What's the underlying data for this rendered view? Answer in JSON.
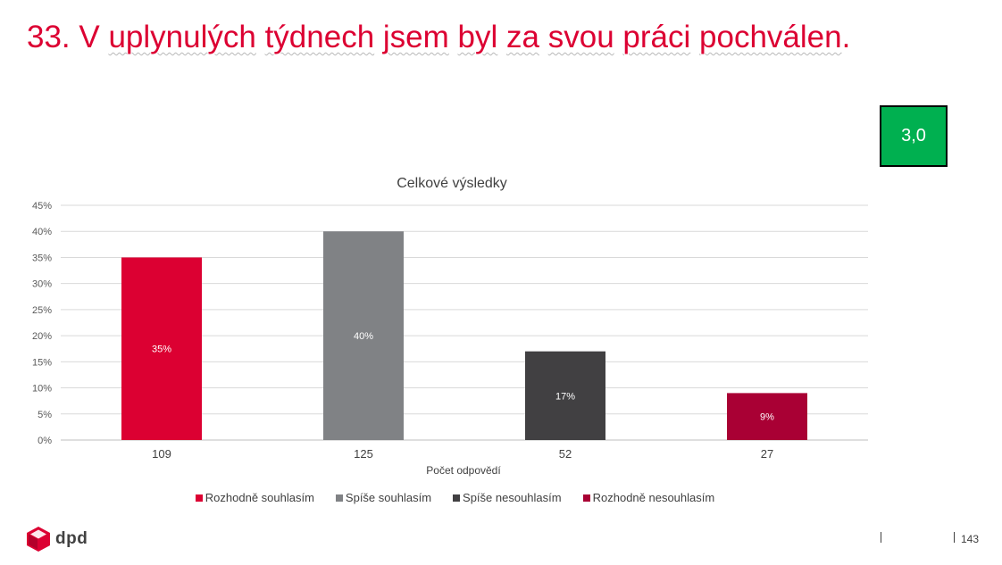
{
  "slide": {
    "title_parts": [
      {
        "text": "33. V ",
        "squiggle": false
      },
      {
        "text": "uplynulých",
        "squiggle": true
      },
      {
        "text": " ",
        "squiggle": false
      },
      {
        "text": "týdnech",
        "squiggle": true
      },
      {
        "text": " ",
        "squiggle": false
      },
      {
        "text": "jsem",
        "squiggle": true
      },
      {
        "text": " ",
        "squiggle": false
      },
      {
        "text": "byl",
        "squiggle": true
      },
      {
        "text": " ",
        "squiggle": false
      },
      {
        "text": "za",
        "squiggle": true
      },
      {
        "text": " ",
        "squiggle": false
      },
      {
        "text": "svou",
        "squiggle": true
      },
      {
        "text": " ",
        "squiggle": false
      },
      {
        "text": "práci",
        "squiggle": true
      },
      {
        "text": " ",
        "squiggle": false
      },
      {
        "text": "pochválen",
        "squiggle": true
      },
      {
        "text": ".",
        "squiggle": false
      }
    ],
    "title_color": "#dc0032",
    "score": "3,0",
    "score_color": "#00b050",
    "logo_text": "dpd",
    "page_number": "143"
  },
  "chart_data": {
    "type": "bar",
    "title": "Celkové výsledky",
    "xlabel": "Počet odpovědí",
    "ylabel": "",
    "categories": [
      "109",
      "125",
      "52",
      "27"
    ],
    "values": [
      35,
      40,
      17,
      9
    ],
    "data_labels": [
      "35%",
      "40%",
      "17%",
      "9%"
    ],
    "series": [
      {
        "name": "Rozhodně souhlasím",
        "value": 35,
        "color": "#dc0032"
      },
      {
        "name": "Spíše souhlasím",
        "value": 40,
        "color": "#808285"
      },
      {
        "name": "Spíše nesouhlasím",
        "value": 17,
        "color": "#414042"
      },
      {
        "name": "Rozhodně nesouhlasím",
        "value": 9,
        "color": "#a90034"
      }
    ],
    "ylim": [
      0,
      45
    ],
    "yticks": [
      "0%",
      "5%",
      "10%",
      "15%",
      "20%",
      "25%",
      "30%",
      "35%",
      "40%",
      "45%"
    ],
    "grid": true,
    "legend_position": "bottom"
  }
}
